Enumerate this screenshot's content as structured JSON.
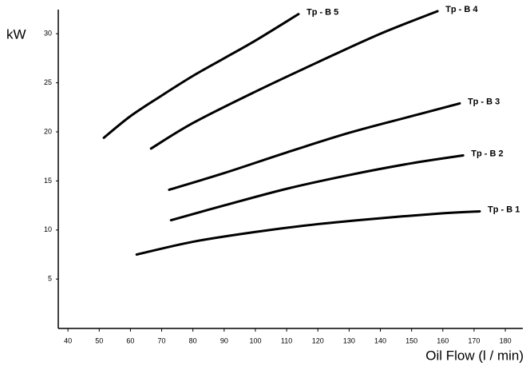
{
  "chart_data": {
    "type": "line",
    "x_label": "Oil Flow (l / min)",
    "y_label": "kW",
    "xlim": [
      36.9,
      185.6
    ],
    "ylim": [
      0,
      32.2
    ],
    "xticks": [
      40,
      50,
      60,
      70,
      80,
      90,
      100,
      110,
      120,
      130,
      140,
      150,
      160,
      170,
      180
    ],
    "yticks": [
      5,
      10,
      15,
      20,
      25,
      30
    ],
    "series": [
      {
        "name": "Tp - B 1",
        "color": "#000000",
        "x": [
          62,
          80,
          100,
          120,
          140,
          160,
          171.8
        ],
        "values": [
          7.5,
          8.8,
          9.8,
          10.6,
          11.2,
          11.7,
          11.9
        ]
      },
      {
        "name": "Tp - B 2",
        "color": "#000000",
        "x": [
          73,
          90,
          110,
          130,
          150,
          166.5
        ],
        "values": [
          11.0,
          12.5,
          14.2,
          15.6,
          16.8,
          17.6
        ]
      },
      {
        "name": "Tp - B 3",
        "color": "#000000",
        "x": [
          72.4,
          90,
          110,
          130,
          150,
          165.4
        ],
        "values": [
          14.1,
          15.8,
          17.9,
          19.9,
          21.6,
          22.9
        ]
      },
      {
        "name": "Tp - B 4",
        "color": "#000000",
        "x": [
          66.6,
          80,
          100,
          120,
          140,
          158.3
        ],
        "values": [
          18.3,
          20.9,
          24.1,
          27.1,
          30.0,
          32.3
        ]
      },
      {
        "name": "Tp - B 5",
        "color": "#000000",
        "x": [
          51.5,
          60,
          70,
          80,
          90,
          100,
          113.8
        ],
        "values": [
          19.4,
          21.6,
          23.7,
          25.7,
          27.5,
          29.3,
          32.0
        ]
      }
    ]
  }
}
